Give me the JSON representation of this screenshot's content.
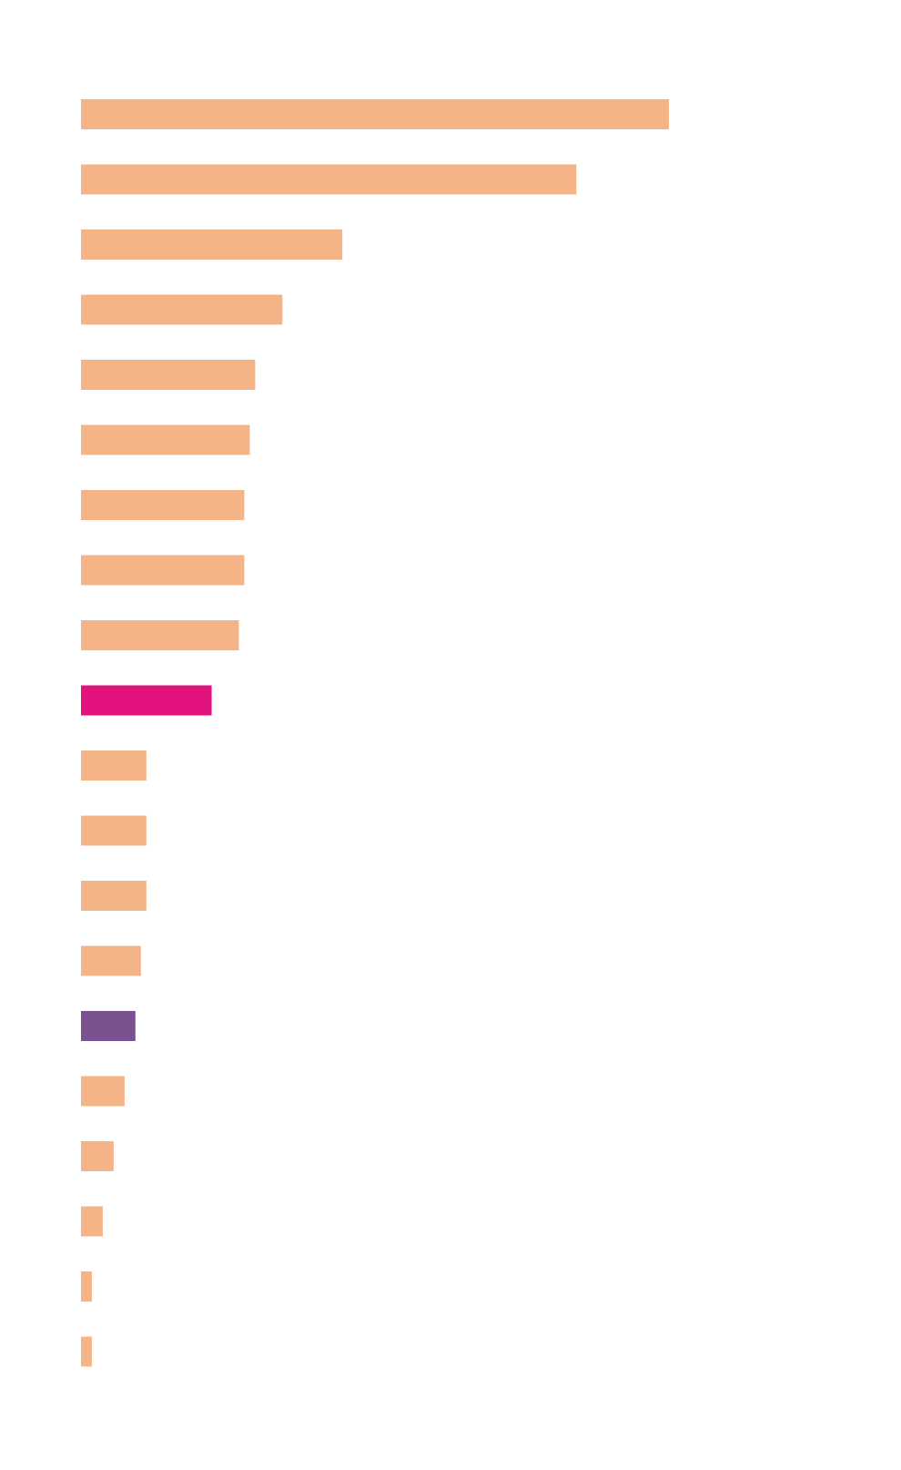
{
  "chart_data": {
    "type": "barh",
    "values": [
      108,
      91,
      48,
      37,
      32,
      31,
      30,
      30,
      29,
      24,
      12,
      12,
      12,
      11,
      10,
      8,
      6,
      4,
      2,
      2
    ],
    "colors": [
      "#f5b487",
      "#f5b487",
      "#f5b487",
      "#f5b487",
      "#f5b487",
      "#f5b487",
      "#f5b487",
      "#f5b487",
      "#f5b487",
      "#e2127f",
      "#f5b487",
      "#f5b487",
      "#f5b487",
      "#f5b487",
      "#7a5290",
      "#f5b487",
      "#f5b487",
      "#f5b487",
      "#f5b487",
      "#f5b487"
    ]
  }
}
